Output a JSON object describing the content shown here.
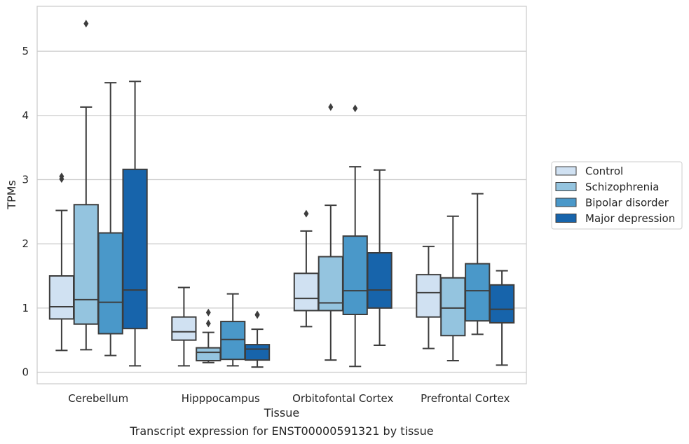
{
  "chart_data": {
    "type": "box",
    "caption": "Transcript expression for ENST00000591321 by tissue",
    "xlabel": "Tissue",
    "ylabel": "TPMs",
    "ylim": [
      -0.18,
      5.7
    ],
    "yticks": [
      0,
      1,
      2,
      3,
      4,
      5
    ],
    "grid": "horizontal",
    "legend_position": "center-right",
    "categories": [
      "Cerebellum",
      "Hipppocampus",
      "Orbitofontal Cortex",
      "Prefrontal Cortex"
    ],
    "series": [
      {
        "name": "Control",
        "color": "#d0e1f2",
        "boxes": [
          {
            "whislo": 0.34,
            "q1": 0.83,
            "med": 1.02,
            "q3": 1.5,
            "whishi": 2.52,
            "fliers": [
              3.01,
              3.05
            ]
          },
          {
            "whislo": 0.1,
            "q1": 0.5,
            "med": 0.63,
            "q3": 0.86,
            "whishi": 1.32,
            "fliers": []
          },
          {
            "whislo": 0.71,
            "q1": 0.96,
            "med": 1.15,
            "q3": 1.54,
            "whishi": 2.2,
            "fliers": [
              2.47
            ]
          },
          {
            "whislo": 0.37,
            "q1": 0.86,
            "med": 1.24,
            "q3": 1.52,
            "whishi": 1.96,
            "fliers": []
          }
        ]
      },
      {
        "name": "Schizophrenia",
        "color": "#94c4df",
        "boxes": [
          {
            "whislo": 0.35,
            "q1": 0.75,
            "med": 1.13,
            "q3": 2.61,
            "whishi": 4.13,
            "fliers": [
              5.43
            ]
          },
          {
            "whislo": 0.15,
            "q1": 0.18,
            "med": 0.31,
            "q3": 0.38,
            "whishi": 0.62,
            "fliers": [
              0.76,
              0.93
            ]
          },
          {
            "whislo": 0.19,
            "q1": 0.96,
            "med": 1.08,
            "q3": 1.8,
            "whishi": 2.6,
            "fliers": [
              4.13
            ]
          },
          {
            "whislo": 0.18,
            "q1": 0.57,
            "med": 1.0,
            "q3": 1.47,
            "whishi": 2.43,
            "fliers": []
          }
        ]
      },
      {
        "name": "Bipolar disorder",
        "color": "#4a98c9",
        "boxes": [
          {
            "whislo": 0.26,
            "q1": 0.6,
            "med": 1.09,
            "q3": 2.17,
            "whishi": 4.51,
            "fliers": []
          },
          {
            "whislo": 0.1,
            "q1": 0.2,
            "med": 0.51,
            "q3": 0.79,
            "whishi": 1.22,
            "fliers": []
          },
          {
            "whislo": 0.09,
            "q1": 0.9,
            "med": 1.27,
            "q3": 2.12,
            "whishi": 3.2,
            "fliers": [
              4.11
            ]
          },
          {
            "whislo": 0.59,
            "q1": 0.8,
            "med": 1.27,
            "q3": 1.69,
            "whishi": 2.78,
            "fliers": []
          }
        ]
      },
      {
        "name": "Major depression",
        "color": "#1764ab",
        "boxes": [
          {
            "whislo": 0.1,
            "q1": 0.68,
            "med": 1.28,
            "q3": 3.16,
            "whishi": 4.53,
            "fliers": []
          },
          {
            "whislo": 0.08,
            "q1": 0.19,
            "med": 0.36,
            "q3": 0.43,
            "whishi": 0.67,
            "fliers": [
              0.89,
              0.9
            ]
          },
          {
            "whislo": 0.42,
            "q1": 1.0,
            "med": 1.28,
            "q3": 1.86,
            "whishi": 3.15,
            "fliers": []
          },
          {
            "whislo": 0.11,
            "q1": 0.77,
            "med": 0.98,
            "q3": 1.36,
            "whishi": 1.58,
            "fliers": []
          }
        ]
      }
    ]
  }
}
